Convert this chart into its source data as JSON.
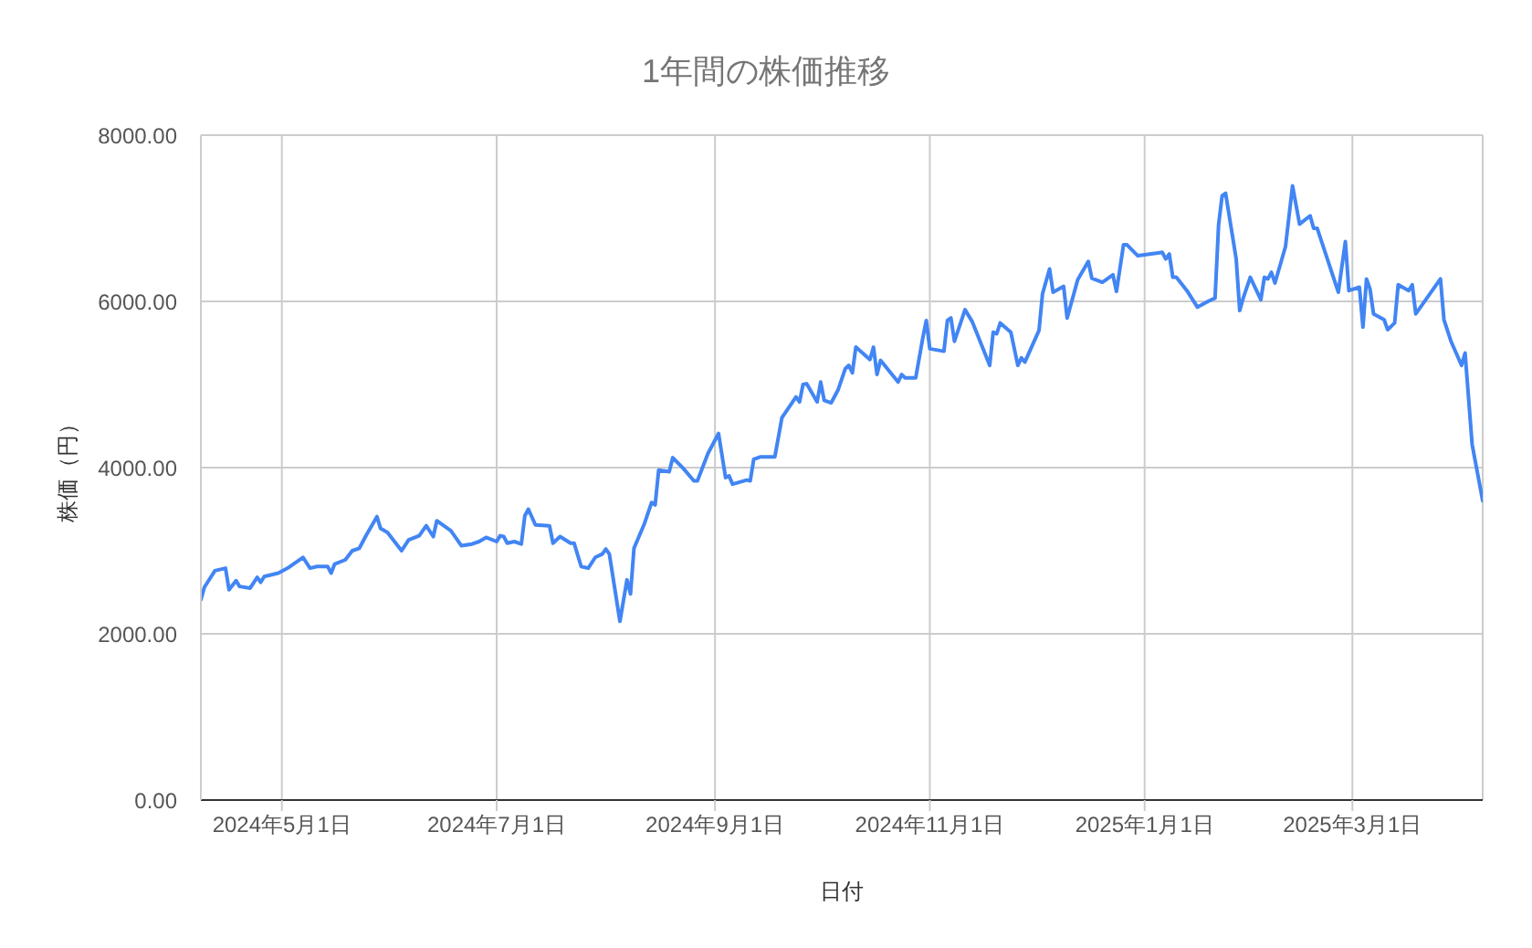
{
  "chart_data": {
    "type": "line",
    "title": "1年間の株価推移",
    "xlabel": "日付",
    "ylabel": "株価（円）",
    "x": [
      "2024-04-08",
      "2024-04-09",
      "2024-04-12",
      "2024-04-15",
      "2024-04-16",
      "2024-04-18",
      "2024-04-19",
      "2024-04-22",
      "2024-04-24",
      "2024-04-25",
      "2024-04-26",
      "2024-04-30",
      "2024-05-03",
      "2024-05-07",
      "2024-05-09",
      "2024-05-11",
      "2024-05-14",
      "2024-05-15",
      "2024-05-16",
      "2024-05-19",
      "2024-05-21",
      "2024-05-23",
      "2024-05-25",
      "2024-05-28",
      "2024-05-29",
      "2024-05-31",
      "2024-06-04",
      "2024-06-06",
      "2024-06-09",
      "2024-06-11",
      "2024-06-13",
      "2024-06-14",
      "2024-06-18",
      "2024-06-21",
      "2024-06-24",
      "2024-06-26",
      "2024-06-28",
      "2024-07-01",
      "2024-07-02",
      "2024-07-03",
      "2024-07-04",
      "2024-07-06",
      "2024-07-08",
      "2024-07-09",
      "2024-07-10",
      "2024-07-12",
      "2024-07-16",
      "2024-07-17",
      "2024-07-19",
      "2024-07-22",
      "2024-07-23",
      "2024-07-25",
      "2024-07-27",
      "2024-07-29",
      "2024-07-31",
      "2024-08-01",
      "2024-08-02",
      "2024-08-05",
      "2024-08-07",
      "2024-08-08",
      "2024-08-09",
      "2024-08-12",
      "2024-08-14",
      "2024-08-15",
      "2024-08-16",
      "2024-08-19",
      "2024-08-20",
      "2024-08-23",
      "2024-08-26",
      "2024-08-27",
      "2024-08-30",
      "2024-09-02",
      "2024-09-04",
      "2024-09-05",
      "2024-09-06",
      "2024-09-10",
      "2024-09-11",
      "2024-09-12",
      "2024-09-14",
      "2024-09-18",
      "2024-09-20",
      "2024-09-24",
      "2024-09-25",
      "2024-09-26",
      "2024-09-27",
      "2024-09-30",
      "2024-10-01",
      "2024-10-02",
      "2024-10-04",
      "2024-10-06",
      "2024-10-08",
      "2024-10-09",
      "2024-10-10",
      "2024-10-11",
      "2024-10-15",
      "2024-10-16",
      "2024-10-17",
      "2024-10-18",
      "2024-10-23",
      "2024-10-24",
      "2024-10-25",
      "2024-10-28",
      "2024-10-30",
      "2024-10-31",
      "2024-11-01",
      "2024-11-05",
      "2024-11-06",
      "2024-11-07",
      "2024-11-08",
      "2024-11-11",
      "2024-11-13",
      "2024-11-18",
      "2024-11-19",
      "2024-11-20",
      "2024-11-21",
      "2024-11-24",
      "2024-11-26",
      "2024-11-27",
      "2024-11-28",
      "2024-12-02",
      "2024-12-03",
      "2024-12-05",
      "2024-12-06",
      "2024-12-09",
      "2024-12-10",
      "2024-12-13",
      "2024-12-16",
      "2024-12-17",
      "2024-12-20",
      "2024-12-23",
      "2024-12-24",
      "2024-12-26",
      "2024-12-27",
      "2024-12-30",
      "2025-01-06",
      "2025-01-07",
      "2025-01-08",
      "2025-01-09",
      "2025-01-10",
      "2025-01-13",
      "2025-01-16",
      "2025-01-19",
      "2025-01-21",
      "2025-01-22",
      "2025-01-23",
      "2025-01-24",
      "2025-01-27",
      "2025-01-28",
      "2025-01-29",
      "2025-01-31",
      "2025-02-03",
      "2025-02-04",
      "2025-02-05",
      "2025-02-06",
      "2025-02-07",
      "2025-02-10",
      "2025-02-12",
      "2025-02-14",
      "2025-02-17",
      "2025-02-18",
      "2025-02-19",
      "2025-02-25",
      "2025-02-27",
      "2025-02-28",
      "2025-03-03",
      "2025-03-04",
      "2025-03-05",
      "2025-03-06",
      "2025-03-07",
      "2025-03-10",
      "2025-03-11",
      "2025-03-13",
      "2025-03-14",
      "2025-03-17",
      "2025-03-18",
      "2025-03-19",
      "2025-03-26",
      "2025-03-27",
      "2025-03-29",
      "2025-04-01",
      "2025-04-02",
      "2025-04-04",
      "2025-04-07"
    ],
    "values": [
      2410,
      2560,
      2760,
      2790,
      2530,
      2640,
      2570,
      2550,
      2680,
      2620,
      2690,
      2730,
      2800,
      2920,
      2790,
      2810,
      2810,
      2730,
      2840,
      2890,
      3000,
      3030,
      3190,
      3410,
      3270,
      3220,
      3000,
      3130,
      3180,
      3300,
      3170,
      3360,
      3240,
      3060,
      3080,
      3110,
      3160,
      3110,
      3180,
      3170,
      3090,
      3110,
      3080,
      3420,
      3500,
      3310,
      3300,
      3090,
      3170,
      3090,
      3090,
      2810,
      2790,
      2920,
      2960,
      3020,
      2960,
      2150,
      2650,
      2480,
      3030,
      3330,
      3580,
      3550,
      3970,
      3950,
      4120,
      3990,
      3840,
      3840,
      4170,
      4410,
      3880,
      3900,
      3800,
      3850,
      3840,
      4100,
      4130,
      4130,
      4600,
      4850,
      4790,
      5000,
      5010,
      4790,
      5030,
      4810,
      4780,
      4940,
      5190,
      5230,
      5140,
      5450,
      5300,
      5450,
      5120,
      5290,
      5030,
      5120,
      5080,
      5080,
      5560,
      5770,
      5430,
      5400,
      5770,
      5800,
      5520,
      5900,
      5760,
      5230,
      5630,
      5610,
      5740,
      5630,
      5230,
      5320,
      5270,
      5650,
      6090,
      6390,
      6110,
      6180,
      5800,
      6260,
      6480,
      6280,
      6230,
      6320,
      6120,
      6680,
      6680,
      6550,
      6590,
      6510,
      6570,
      6290,
      6290,
      6130,
      5930,
      6000,
      6040,
      6920,
      7270,
      7300,
      6510,
      5890,
      6040,
      6290,
      6020,
      6290,
      6270,
      6350,
      6220,
      6660,
      7390,
      6930,
      7030,
      6880,
      6880,
      6110,
      6720,
      6130,
      6170,
      5690,
      6270,
      6150,
      5850,
      5780,
      5660,
      5740,
      6200,
      6130,
      6200,
      5850,
      6270,
      5780,
      5520,
      5230,
      5380,
      4280,
      3600
    ],
    "color": "#4285f4",
    "line_style": "solid",
    "xlim": [
      "2024-04-08",
      "2025-04-07"
    ],
    "xticks": [
      {
        "value": "2024-05-01",
        "label": "2024年5月1日"
      },
      {
        "value": "2024-07-01",
        "label": "2024年7月1日"
      },
      {
        "value": "2024-09-01",
        "label": "2024年9月1日"
      },
      {
        "value": "2024-11-01",
        "label": "2024年11月1日"
      },
      {
        "value": "2025-01-01",
        "label": "2025年1月1日"
      },
      {
        "value": "2025-03-01",
        "label": "2025年3月1日"
      }
    ],
    "ylim": [
      0,
      8000
    ],
    "yticks": [
      {
        "value": 0,
        "label": "0.00"
      },
      {
        "value": 2000,
        "label": "2000.00"
      },
      {
        "value": 4000,
        "label": "4000.00"
      },
      {
        "value": 6000,
        "label": "6000.00"
      },
      {
        "value": 8000,
        "label": "8000.00"
      }
    ],
    "grid": true
  }
}
